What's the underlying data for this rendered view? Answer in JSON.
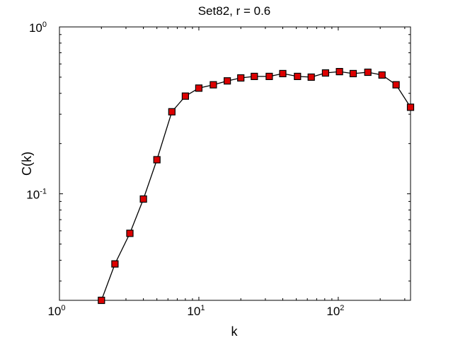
{
  "chart_data": {
    "type": "line",
    "title": "Set82, r = 0.6",
    "xlabel": "k",
    "ylabel": "C(k)",
    "xscale": "log",
    "yscale": "log",
    "xlim": [
      1,
      330
    ],
    "ylim": [
      0.023,
      1
    ],
    "grid": false,
    "legend": "none",
    "xticks": [
      {
        "value": 1,
        "base": "10",
        "exp": "0"
      },
      {
        "value": 10,
        "base": "10",
        "exp": "1"
      },
      {
        "value": 100,
        "base": "10",
        "exp": "2"
      }
    ],
    "yticks": [
      {
        "value": 0.1,
        "base": "10",
        "exp": "-1"
      },
      {
        "value": 1,
        "base": "10",
        "exp": "0"
      }
    ],
    "series": [
      {
        "color": "#000000",
        "marker": "square",
        "marker_color": "#dd0000",
        "x": [
          2,
          2.5,
          3.2,
          4,
          5,
          6.4,
          8,
          10,
          12.7,
          16,
          20,
          25,
          32,
          40,
          51,
          64,
          81,
          102,
          128,
          163,
          206,
          260,
          330
        ],
        "y": [
          0.023,
          0.038,
          0.058,
          0.093,
          0.16,
          0.31,
          0.385,
          0.43,
          0.45,
          0.475,
          0.495,
          0.505,
          0.505,
          0.525,
          0.505,
          0.5,
          0.53,
          0.54,
          0.525,
          0.535,
          0.515,
          0.45,
          0.33
        ]
      }
    ]
  }
}
